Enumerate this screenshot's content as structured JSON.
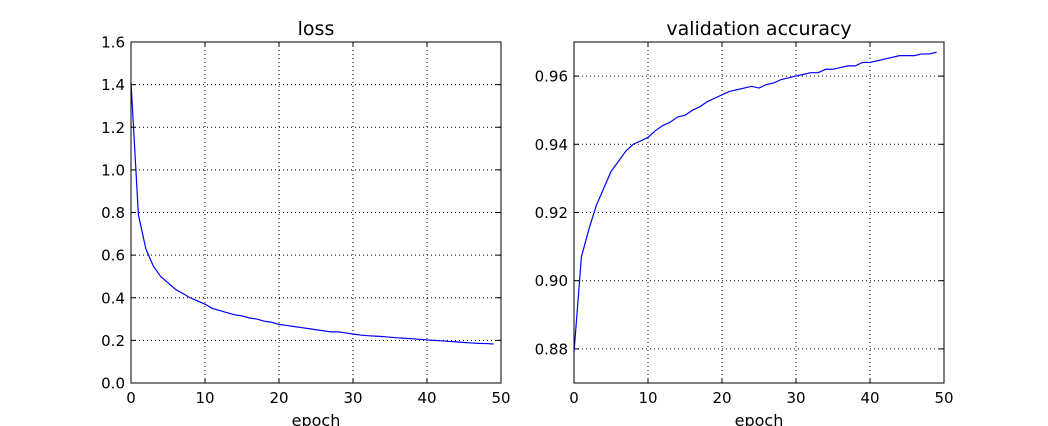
{
  "chart_data": [
    {
      "type": "line",
      "title": "loss",
      "xlabel": "epoch",
      "ylabel": "",
      "xlim": [
        0,
        50
      ],
      "ylim": [
        0.0,
        1.6
      ],
      "xticks": [
        0,
        10,
        20,
        30,
        40,
        50
      ],
      "xtick_labels": [
        "0",
        "10",
        "20",
        "30",
        "40",
        "50"
      ],
      "yticks": [
        0.0,
        0.2,
        0.4,
        0.6,
        0.8,
        1.0,
        1.2,
        1.4,
        1.6
      ],
      "ytick_labels": [
        "0.0",
        "0.2",
        "0.4",
        "0.6",
        "0.8",
        "1.0",
        "1.2",
        "1.4",
        "1.6"
      ],
      "grid": true,
      "series": [
        {
          "color": "#0000ff",
          "x": [
            0,
            1,
            2,
            3,
            4,
            5,
            6,
            7,
            8,
            9,
            10,
            11,
            12,
            13,
            14,
            15,
            16,
            17,
            18,
            19,
            20,
            21,
            22,
            23,
            24,
            25,
            26,
            27,
            28,
            29,
            30,
            31,
            32,
            33,
            34,
            35,
            36,
            37,
            38,
            39,
            40,
            41,
            42,
            43,
            44,
            45,
            46,
            47,
            48,
            49
          ],
          "values": [
            1.41,
            0.79,
            0.63,
            0.55,
            0.5,
            0.47,
            0.44,
            0.42,
            0.4,
            0.385,
            0.37,
            0.35,
            0.34,
            0.33,
            0.32,
            0.315,
            0.305,
            0.3,
            0.29,
            0.285,
            0.275,
            0.27,
            0.265,
            0.26,
            0.255,
            0.25,
            0.245,
            0.24,
            0.24,
            0.235,
            0.23,
            0.225,
            0.222,
            0.22,
            0.218,
            0.215,
            0.212,
            0.21,
            0.208,
            0.205,
            0.202,
            0.2,
            0.198,
            0.195,
            0.193,
            0.19,
            0.188,
            0.186,
            0.185,
            0.183
          ]
        }
      ]
    },
    {
      "type": "line",
      "title": "validation accuracy",
      "xlabel": "epoch",
      "ylabel": "",
      "xlim": [
        0,
        50
      ],
      "ylim": [
        0.87,
        0.97
      ],
      "xticks": [
        0,
        10,
        20,
        30,
        40,
        50
      ],
      "xtick_labels": [
        "0",
        "10",
        "20",
        "30",
        "40",
        "50"
      ],
      "yticks": [
        0.88,
        0.9,
        0.92,
        0.94,
        0.96
      ],
      "ytick_labels": [
        "0.88",
        "0.90",
        "0.92",
        "0.94",
        "0.96"
      ],
      "grid": true,
      "series": [
        {
          "color": "#0000ff",
          "x": [
            0,
            1,
            2,
            3,
            4,
            5,
            6,
            7,
            8,
            9,
            10,
            11,
            12,
            13,
            14,
            15,
            16,
            17,
            18,
            19,
            20,
            21,
            22,
            23,
            24,
            25,
            26,
            27,
            28,
            29,
            30,
            31,
            32,
            33,
            34,
            35,
            36,
            37,
            38,
            39,
            40,
            41,
            42,
            43,
            44,
            45,
            46,
            47,
            48,
            49
          ],
          "values": [
            0.879,
            0.907,
            0.915,
            0.922,
            0.927,
            0.932,
            0.935,
            0.938,
            0.94,
            0.941,
            0.942,
            0.944,
            0.9455,
            0.9465,
            0.948,
            0.9485,
            0.95,
            0.951,
            0.9525,
            0.9535,
            0.9545,
            0.9555,
            0.956,
            0.9565,
            0.957,
            0.9565,
            0.9575,
            0.958,
            0.959,
            0.9595,
            0.96,
            0.9605,
            0.961,
            0.961,
            0.962,
            0.962,
            0.9625,
            0.963,
            0.963,
            0.964,
            0.964,
            0.9645,
            0.965,
            0.9655,
            0.966,
            0.966,
            0.966,
            0.9665,
            0.9665,
            0.967
          ]
        }
      ]
    }
  ]
}
